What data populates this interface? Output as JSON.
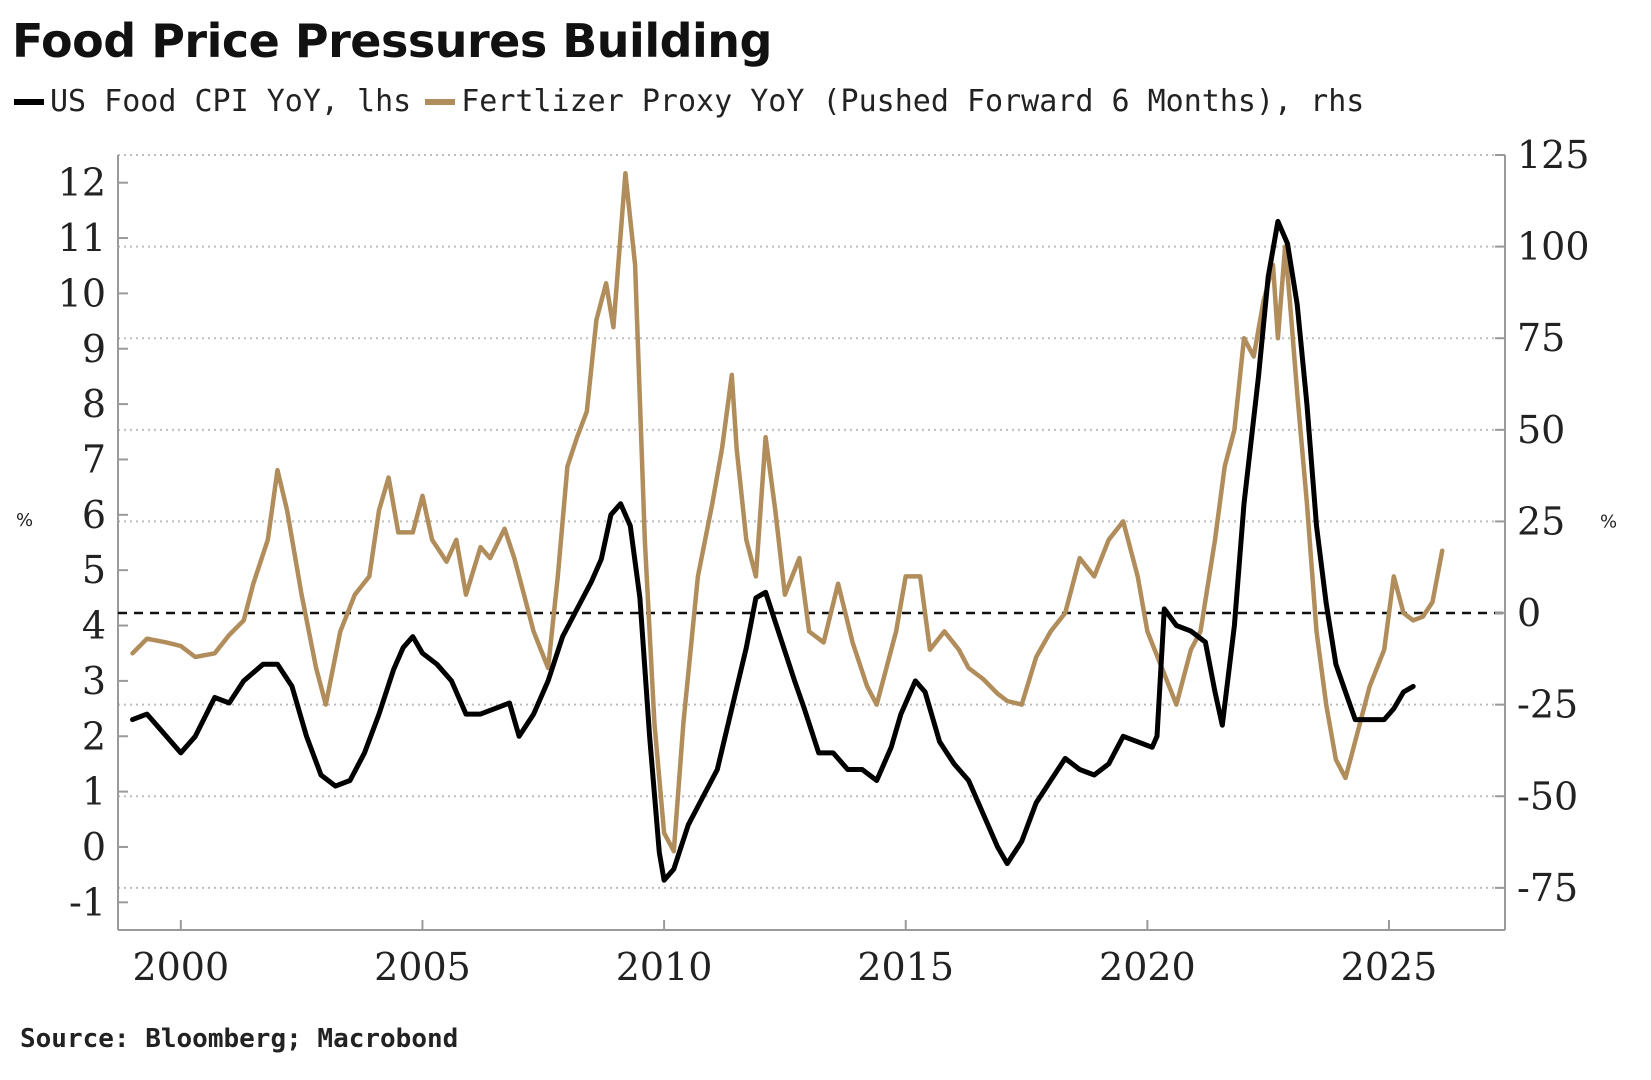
{
  "chart_data": {
    "type": "line",
    "title": "Food Price Pressures Building",
    "source": "Source: Bloomberg; Macrobond",
    "left_axis": {
      "unit": "%",
      "ylim": [
        -1.5,
        12.5
      ],
      "ticks": [
        -1,
        0,
        1,
        2,
        3,
        4,
        5,
        6,
        7,
        8,
        9,
        10,
        11,
        12
      ]
    },
    "right_axis": {
      "unit": "%",
      "ylim": [
        -86.5,
        125
      ],
      "ticks": [
        -75,
        -50,
        -25,
        0,
        25,
        50,
        75,
        100,
        125
      ]
    },
    "x_axis": {
      "xlim": [
        1998.7,
        2027.4
      ],
      "ticks": [
        2000,
        2005,
        2010,
        2015,
        2020,
        2025
      ]
    },
    "zero_line_right": 0,
    "grid": "horizontal dotted",
    "legend_position": "top-left",
    "colors": {
      "food_cpi": "#000000",
      "fertilizer": "#b08d5b"
    },
    "series": [
      {
        "name": "US Food CPI YoY, lhs",
        "axis": "left",
        "color": "#000000",
        "points": [
          [
            1999.0,
            2.3
          ],
          [
            1999.3,
            2.4
          ],
          [
            1999.6,
            2.1
          ],
          [
            2000.0,
            1.7
          ],
          [
            2000.3,
            2.0
          ],
          [
            2000.7,
            2.7
          ],
          [
            2001.0,
            2.6
          ],
          [
            2001.3,
            3.0
          ],
          [
            2001.7,
            3.3
          ],
          [
            2002.0,
            3.3
          ],
          [
            2002.3,
            2.9
          ],
          [
            2002.6,
            2.0
          ],
          [
            2002.9,
            1.3
          ],
          [
            2003.2,
            1.1
          ],
          [
            2003.5,
            1.2
          ],
          [
            2003.8,
            1.7
          ],
          [
            2004.1,
            2.4
          ],
          [
            2004.4,
            3.2
          ],
          [
            2004.6,
            3.6
          ],
          [
            2004.8,
            3.8
          ],
          [
            2005.0,
            3.5
          ],
          [
            2005.3,
            3.3
          ],
          [
            2005.6,
            3.0
          ],
          [
            2005.9,
            2.4
          ],
          [
            2006.2,
            2.4
          ],
          [
            2006.5,
            2.5
          ],
          [
            2006.8,
            2.6
          ],
          [
            2007.0,
            2.0
          ],
          [
            2007.3,
            2.4
          ],
          [
            2007.6,
            3.0
          ],
          [
            2007.9,
            3.8
          ],
          [
            2008.2,
            4.3
          ],
          [
            2008.5,
            4.8
          ],
          [
            2008.7,
            5.2
          ],
          [
            2008.9,
            6.0
          ],
          [
            2009.1,
            6.2
          ],
          [
            2009.3,
            5.8
          ],
          [
            2009.5,
            4.5
          ],
          [
            2009.7,
            2.0
          ],
          [
            2009.9,
            -0.1
          ],
          [
            2010.0,
            -0.6
          ],
          [
            2010.2,
            -0.4
          ],
          [
            2010.5,
            0.4
          ],
          [
            2010.8,
            0.9
          ],
          [
            2011.1,
            1.4
          ],
          [
            2011.4,
            2.5
          ],
          [
            2011.7,
            3.6
          ],
          [
            2011.9,
            4.5
          ],
          [
            2012.1,
            4.6
          ],
          [
            2012.4,
            3.8
          ],
          [
            2012.7,
            3.0
          ],
          [
            2012.9,
            2.5
          ],
          [
            2013.2,
            1.7
          ],
          [
            2013.5,
            1.7
          ],
          [
            2013.8,
            1.4
          ],
          [
            2014.1,
            1.4
          ],
          [
            2014.4,
            1.2
          ],
          [
            2014.7,
            1.8
          ],
          [
            2014.9,
            2.4
          ],
          [
            2015.2,
            3.0
          ],
          [
            2015.4,
            2.8
          ],
          [
            2015.7,
            1.9
          ],
          [
            2016.0,
            1.5
          ],
          [
            2016.3,
            1.2
          ],
          [
            2016.6,
            0.6
          ],
          [
            2016.9,
            0.0
          ],
          [
            2017.1,
            -0.3
          ],
          [
            2017.4,
            0.1
          ],
          [
            2017.7,
            0.8
          ],
          [
            2018.0,
            1.2
          ],
          [
            2018.3,
            1.6
          ],
          [
            2018.6,
            1.4
          ],
          [
            2018.9,
            1.3
          ],
          [
            2019.2,
            1.5
          ],
          [
            2019.5,
            2.0
          ],
          [
            2019.8,
            1.9
          ],
          [
            2020.1,
            1.8
          ],
          [
            2020.2,
            2.0
          ],
          [
            2020.35,
            4.3
          ],
          [
            2020.6,
            4.0
          ],
          [
            2020.9,
            3.9
          ],
          [
            2021.2,
            3.7
          ],
          [
            2021.4,
            2.8
          ],
          [
            2021.55,
            2.2
          ],
          [
            2021.8,
            4.0
          ],
          [
            2022.0,
            6.2
          ],
          [
            2022.3,
            8.5
          ],
          [
            2022.5,
            10.3
          ],
          [
            2022.7,
            11.3
          ],
          [
            2022.9,
            10.9
          ],
          [
            2023.1,
            9.8
          ],
          [
            2023.3,
            8.0
          ],
          [
            2023.5,
            5.8
          ],
          [
            2023.7,
            4.4
          ],
          [
            2023.9,
            3.3
          ],
          [
            2024.1,
            2.8
          ],
          [
            2024.3,
            2.3
          ],
          [
            2024.6,
            2.3
          ],
          [
            2024.9,
            2.3
          ],
          [
            2025.1,
            2.5
          ],
          [
            2025.3,
            2.8
          ],
          [
            2025.5,
            2.9
          ]
        ]
      },
      {
        "name": "Fertlizer Proxy YoY (Pushed Forward 6 Months), rhs",
        "axis": "right",
        "color": "#b08d5b",
        "points": [
          [
            1999.0,
            -11
          ],
          [
            1999.3,
            -7
          ],
          [
            1999.7,
            -8
          ],
          [
            2000.0,
            -9
          ],
          [
            2000.3,
            -12
          ],
          [
            2000.7,
            -11
          ],
          [
            2001.0,
            -6
          ],
          [
            2001.3,
            -2
          ],
          [
            2001.5,
            8
          ],
          [
            2001.8,
            20
          ],
          [
            2002.0,
            39
          ],
          [
            2002.2,
            28
          ],
          [
            2002.5,
            5
          ],
          [
            2002.8,
            -15
          ],
          [
            2003.0,
            -25
          ],
          [
            2003.3,
            -5
          ],
          [
            2003.6,
            5
          ],
          [
            2003.9,
            10
          ],
          [
            2004.1,
            28
          ],
          [
            2004.3,
            37
          ],
          [
            2004.5,
            22
          ],
          [
            2004.8,
            22
          ],
          [
            2005.0,
            32
          ],
          [
            2005.2,
            20
          ],
          [
            2005.5,
            14
          ],
          [
            2005.7,
            20
          ],
          [
            2005.9,
            5
          ],
          [
            2006.2,
            18
          ],
          [
            2006.4,
            15
          ],
          [
            2006.7,
            23
          ],
          [
            2006.9,
            15
          ],
          [
            2007.1,
            5
          ],
          [
            2007.3,
            -5
          ],
          [
            2007.6,
            -15
          ],
          [
            2007.8,
            10
          ],
          [
            2008.0,
            40
          ],
          [
            2008.2,
            48
          ],
          [
            2008.4,
            55
          ],
          [
            2008.6,
            80
          ],
          [
            2008.8,
            90
          ],
          [
            2008.95,
            78
          ],
          [
            2009.2,
            120
          ],
          [
            2009.4,
            95
          ],
          [
            2009.6,
            20
          ],
          [
            2009.8,
            -30
          ],
          [
            2010.0,
            -60
          ],
          [
            2010.2,
            -65
          ],
          [
            2010.4,
            -30
          ],
          [
            2010.7,
            10
          ],
          [
            2011.0,
            30
          ],
          [
            2011.2,
            45
          ],
          [
            2011.4,
            65
          ],
          [
            2011.5,
            45
          ],
          [
            2011.7,
            20
          ],
          [
            2011.9,
            10
          ],
          [
            2012.1,
            48
          ],
          [
            2012.3,
            28
          ],
          [
            2012.5,
            5
          ],
          [
            2012.8,
            15
          ],
          [
            2013.0,
            -5
          ],
          [
            2013.3,
            -8
          ],
          [
            2013.6,
            8
          ],
          [
            2013.9,
            -8
          ],
          [
            2014.2,
            -20
          ],
          [
            2014.4,
            -25
          ],
          [
            2014.6,
            -15
          ],
          [
            2014.8,
            -5
          ],
          [
            2015.0,
            10
          ],
          [
            2015.3,
            10
          ],
          [
            2015.5,
            -10
          ],
          [
            2015.8,
            -5
          ],
          [
            2016.1,
            -10
          ],
          [
            2016.3,
            -15
          ],
          [
            2016.6,
            -18
          ],
          [
            2016.9,
            -22
          ],
          [
            2017.1,
            -24
          ],
          [
            2017.4,
            -25
          ],
          [
            2017.7,
            -12
          ],
          [
            2018.0,
            -5
          ],
          [
            2018.3,
            0
          ],
          [
            2018.6,
            15
          ],
          [
            2018.9,
            10
          ],
          [
            2019.2,
            20
          ],
          [
            2019.5,
            25
          ],
          [
            2019.8,
            10
          ],
          [
            2020.0,
            -5
          ],
          [
            2020.3,
            -15
          ],
          [
            2020.6,
            -25
          ],
          [
            2020.9,
            -10
          ],
          [
            2021.1,
            -5
          ],
          [
            2021.4,
            20
          ],
          [
            2021.6,
            40
          ],
          [
            2021.8,
            50
          ],
          [
            2022.0,
            75
          ],
          [
            2022.2,
            70
          ],
          [
            2022.4,
            85
          ],
          [
            2022.6,
            95
          ],
          [
            2022.7,
            75
          ],
          [
            2022.85,
            100
          ],
          [
            2022.95,
            85
          ],
          [
            2023.1,
            60
          ],
          [
            2023.3,
            30
          ],
          [
            2023.5,
            -5
          ],
          [
            2023.7,
            -25
          ],
          [
            2023.9,
            -40
          ],
          [
            2024.1,
            -45
          ],
          [
            2024.3,
            -35
          ],
          [
            2024.6,
            -20
          ],
          [
            2024.9,
            -10
          ],
          [
            2025.1,
            10
          ],
          [
            2025.3,
            0
          ],
          [
            2025.5,
            -2
          ],
          [
            2025.7,
            -1
          ],
          [
            2025.9,
            3
          ],
          [
            2026.1,
            17
          ]
        ]
      }
    ]
  }
}
